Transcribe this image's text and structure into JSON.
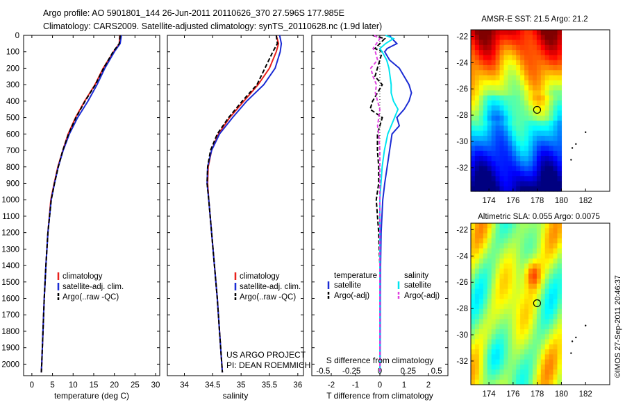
{
  "header": {
    "title_line1": "Argo profile: AO 5901801_144 26-Jun-2011 20110626_370 27.596S 177.985E",
    "title_line2": "Climatology: CARS2009. Satellite-adjusted climatology: synTS_20110628.nc (1.9d later)"
  },
  "footer": {
    "project_line1": "US ARGO PROJECT",
    "project_line2": "PI: DEAN ROEMMICH",
    "side_stamp": "©IMOS 27-Sep-2011 20:46:37"
  },
  "colors": {
    "climatology": "#e8201c",
    "satellite": "#1a2bd4",
    "argo": "#000000",
    "sal_satellite": "#00e5f0",
    "sal_argo": "#e040e0"
  },
  "depth_ticks": [
    "0",
    "100",
    "200",
    "300",
    "400",
    "500",
    "600",
    "700",
    "800",
    "900",
    "1000",
    "1100",
    "1200",
    "1300",
    "1400",
    "1500",
    "1600",
    "1700",
    "1800",
    "1900",
    "2000"
  ],
  "chart_data": [
    {
      "type": "line",
      "xlabel": "temperature (deg C)",
      "ylabel": "",
      "xlim": [
        -2,
        31
      ],
      "ylim": [
        2070,
        0
      ],
      "xticks": [
        "0",
        "5",
        "10",
        "15",
        "20",
        "25",
        "30"
      ],
      "legend": [
        "climatology",
        "satellite-adj. clim.",
        "Argo(..raw -QC)"
      ],
      "legend_position": "lower-middle",
      "depth": [
        0,
        50,
        100,
        200,
        300,
        400,
        500,
        600,
        700,
        800,
        900,
        1000,
        1200,
        1400,
        1600,
        1800,
        2000,
        2050
      ],
      "series": [
        {
          "name": "climatology",
          "values": [
            21.3,
            21.2,
            19.8,
            17.3,
            15.3,
            12.8,
            10.6,
            8.8,
            7.5,
            6.3,
            5.4,
            4.6,
            3.9,
            3.4,
            3.0,
            2.7,
            2.4,
            2.3
          ]
        },
        {
          "name": "satellite-adj. clim.",
          "values": [
            21.7,
            21.4,
            20.0,
            17.7,
            15.8,
            13.6,
            11.1,
            9.1,
            7.6,
            6.4,
            5.5,
            4.7,
            3.9,
            3.4,
            3.0,
            2.7,
            2.4,
            2.3
          ]
        },
        {
          "name": "Argo(..raw -QC)",
          "values": [
            21.4,
            21.2,
            19.7,
            17.4,
            15.4,
            12.9,
            10.7,
            8.9,
            7.5,
            6.4,
            5.5,
            4.7,
            3.9,
            3.4,
            3.0,
            2.7,
            2.4,
            2.3
          ]
        }
      ]
    },
    {
      "type": "line",
      "xlabel": "salinity",
      "ylabel": "",
      "xlim": [
        33.7,
        36.1
      ],
      "ylim": [
        2070,
        0
      ],
      "xticks": [
        "34",
        "34.5",
        "35",
        "35.5",
        "36"
      ],
      "legend": [
        "climatology",
        "satellite-adj. clim.",
        "Argo(..raw -QC)"
      ],
      "legend_position": "lower-middle",
      "depth": [
        0,
        50,
        100,
        200,
        300,
        400,
        500,
        600,
        700,
        800,
        900,
        1000,
        1200,
        1400,
        1600,
        1800,
        2000,
        2050
      ],
      "series": [
        {
          "name": "climatology",
          "values": [
            35.62,
            35.66,
            35.62,
            35.5,
            35.3,
            35.05,
            34.8,
            34.6,
            34.48,
            34.42,
            34.41,
            34.43,
            34.48,
            34.53,
            34.58,
            34.62,
            34.66,
            34.67
          ]
        },
        {
          "name": "satellite-adj. clim.",
          "values": [
            35.68,
            35.71,
            35.69,
            35.6,
            35.4,
            35.1,
            34.85,
            34.62,
            34.48,
            34.41,
            34.4,
            34.43,
            34.48,
            34.53,
            34.58,
            34.62,
            34.66,
            34.67
          ]
        },
        {
          "name": "Argo(..raw -QC)",
          "values": [
            35.62,
            35.64,
            35.56,
            35.42,
            35.28,
            35.02,
            34.78,
            34.58,
            34.46,
            34.41,
            34.4,
            34.43,
            34.48,
            34.53,
            34.58,
            34.62,
            34.66,
            34.67
          ]
        }
      ]
    },
    {
      "type": "line",
      "xlabel": "T difference from climatology",
      "top_label": "S difference from climatology",
      "ylabel": "",
      "xlim": [
        -2.8,
        2.8
      ],
      "ylim": [
        2070,
        0
      ],
      "xticks_T": [
        "-2",
        "-1",
        "0",
        "1",
        "2"
      ],
      "xticks_S": [
        "-0.5",
        "-0.25",
        "0",
        "0.25",
        "0.5"
      ],
      "legend": [
        "temperature",
        "satellite",
        "Argo(-adj)",
        "salinity",
        "satellite",
        "Argo(-adj)"
      ],
      "legend_position": "lower-middle",
      "depth": [
        0,
        20,
        50,
        80,
        100,
        150,
        200,
        250,
        300,
        350,
        400,
        450,
        500,
        550,
        600,
        700,
        800,
        900,
        1000,
        1200,
        1400,
        1600,
        2000,
        2050
      ],
      "series": [
        {
          "name": "temperature satellite",
          "values": [
            0.4,
            0.5,
            0.7,
            0.3,
            0.2,
            0.4,
            0.8,
            1.0,
            1.2,
            1.3,
            1.2,
            1.0,
            0.7,
            0.8,
            0.5,
            0.4,
            0.3,
            0.2,
            0.12,
            0.05,
            0.03,
            0.02,
            0.01,
            0.0
          ]
        },
        {
          "name": "temperature Argo(-adj)",
          "values": [
            -0.3,
            0.2,
            0.0,
            -0.2,
            0.1,
            0.0,
            -0.1,
            -0.2,
            0.1,
            -0.1,
            -0.3,
            -0.4,
            0.1,
            0.0,
            -0.1,
            -0.1,
            -0.05,
            -0.05,
            -0.15,
            -0.05,
            0.0,
            0.0,
            0.0,
            0.0
          ]
        },
        {
          "name": "salinity satellite",
          "values": [
            0.05,
            0.12,
            0.05,
            0.0,
            0.02,
            0.06,
            0.08,
            0.09,
            0.1,
            0.1,
            0.12,
            0.16,
            0.13,
            0.1,
            0.07,
            0.04,
            0.02,
            0.01,
            0.0,
            0.0,
            0.0,
            0.0,
            0.0,
            0.0
          ]
        },
        {
          "name": "salinity Argo(-adj)",
          "values": [
            -0.05,
            0.0,
            -0.03,
            -0.06,
            -0.04,
            -0.02,
            -0.08,
            -0.06,
            -0.03,
            -0.04,
            -0.02,
            0.0,
            -0.01,
            -0.02,
            -0.01,
            0.0,
            0.0,
            0.0,
            0.0,
            0.0,
            0.0,
            0.0,
            0.0,
            0.0
          ]
        }
      ]
    },
    {
      "type": "heatmap",
      "title": "AMSR-E SST: 21.5 Argo: 21.2",
      "xlim": [
        172.5,
        184
      ],
      "ylim": [
        -33.8,
        -21.5
      ],
      "xticks": [
        "174",
        "176",
        "178",
        "180",
        "182"
      ],
      "yticks": [
        "-22",
        "-24",
        "-26",
        "-28",
        "-30",
        "-32"
      ],
      "argo_position": {
        "lon": 177.985,
        "lat": -27.596
      },
      "islands": [
        {
          "lon": 182,
          "lat": -29.3
        },
        {
          "lon": 181.2,
          "lat": -30.2
        },
        {
          "lon": 180.9,
          "lat": -30.5
        },
        {
          "lon": 180.8,
          "lat": -31.4
        }
      ]
    },
    {
      "type": "heatmap",
      "title": "Altimetric SLA: 0.055 Argo: 0.0075",
      "xlim": [
        172.5,
        184
      ],
      "ylim": [
        -33.8,
        -21.5
      ],
      "xticks": [
        "174",
        "176",
        "178",
        "180",
        "182"
      ],
      "yticks": [
        "-22",
        "-24",
        "-26",
        "-28",
        "-30",
        "-32"
      ],
      "argo_position": {
        "lon": 177.985,
        "lat": -27.596
      },
      "islands": [
        {
          "lon": 182,
          "lat": -29.3
        },
        {
          "lon": 181.2,
          "lat": -30.2
        },
        {
          "lon": 180.9,
          "lat": -30.5
        },
        {
          "lon": 180.8,
          "lat": -31.4
        }
      ]
    }
  ]
}
